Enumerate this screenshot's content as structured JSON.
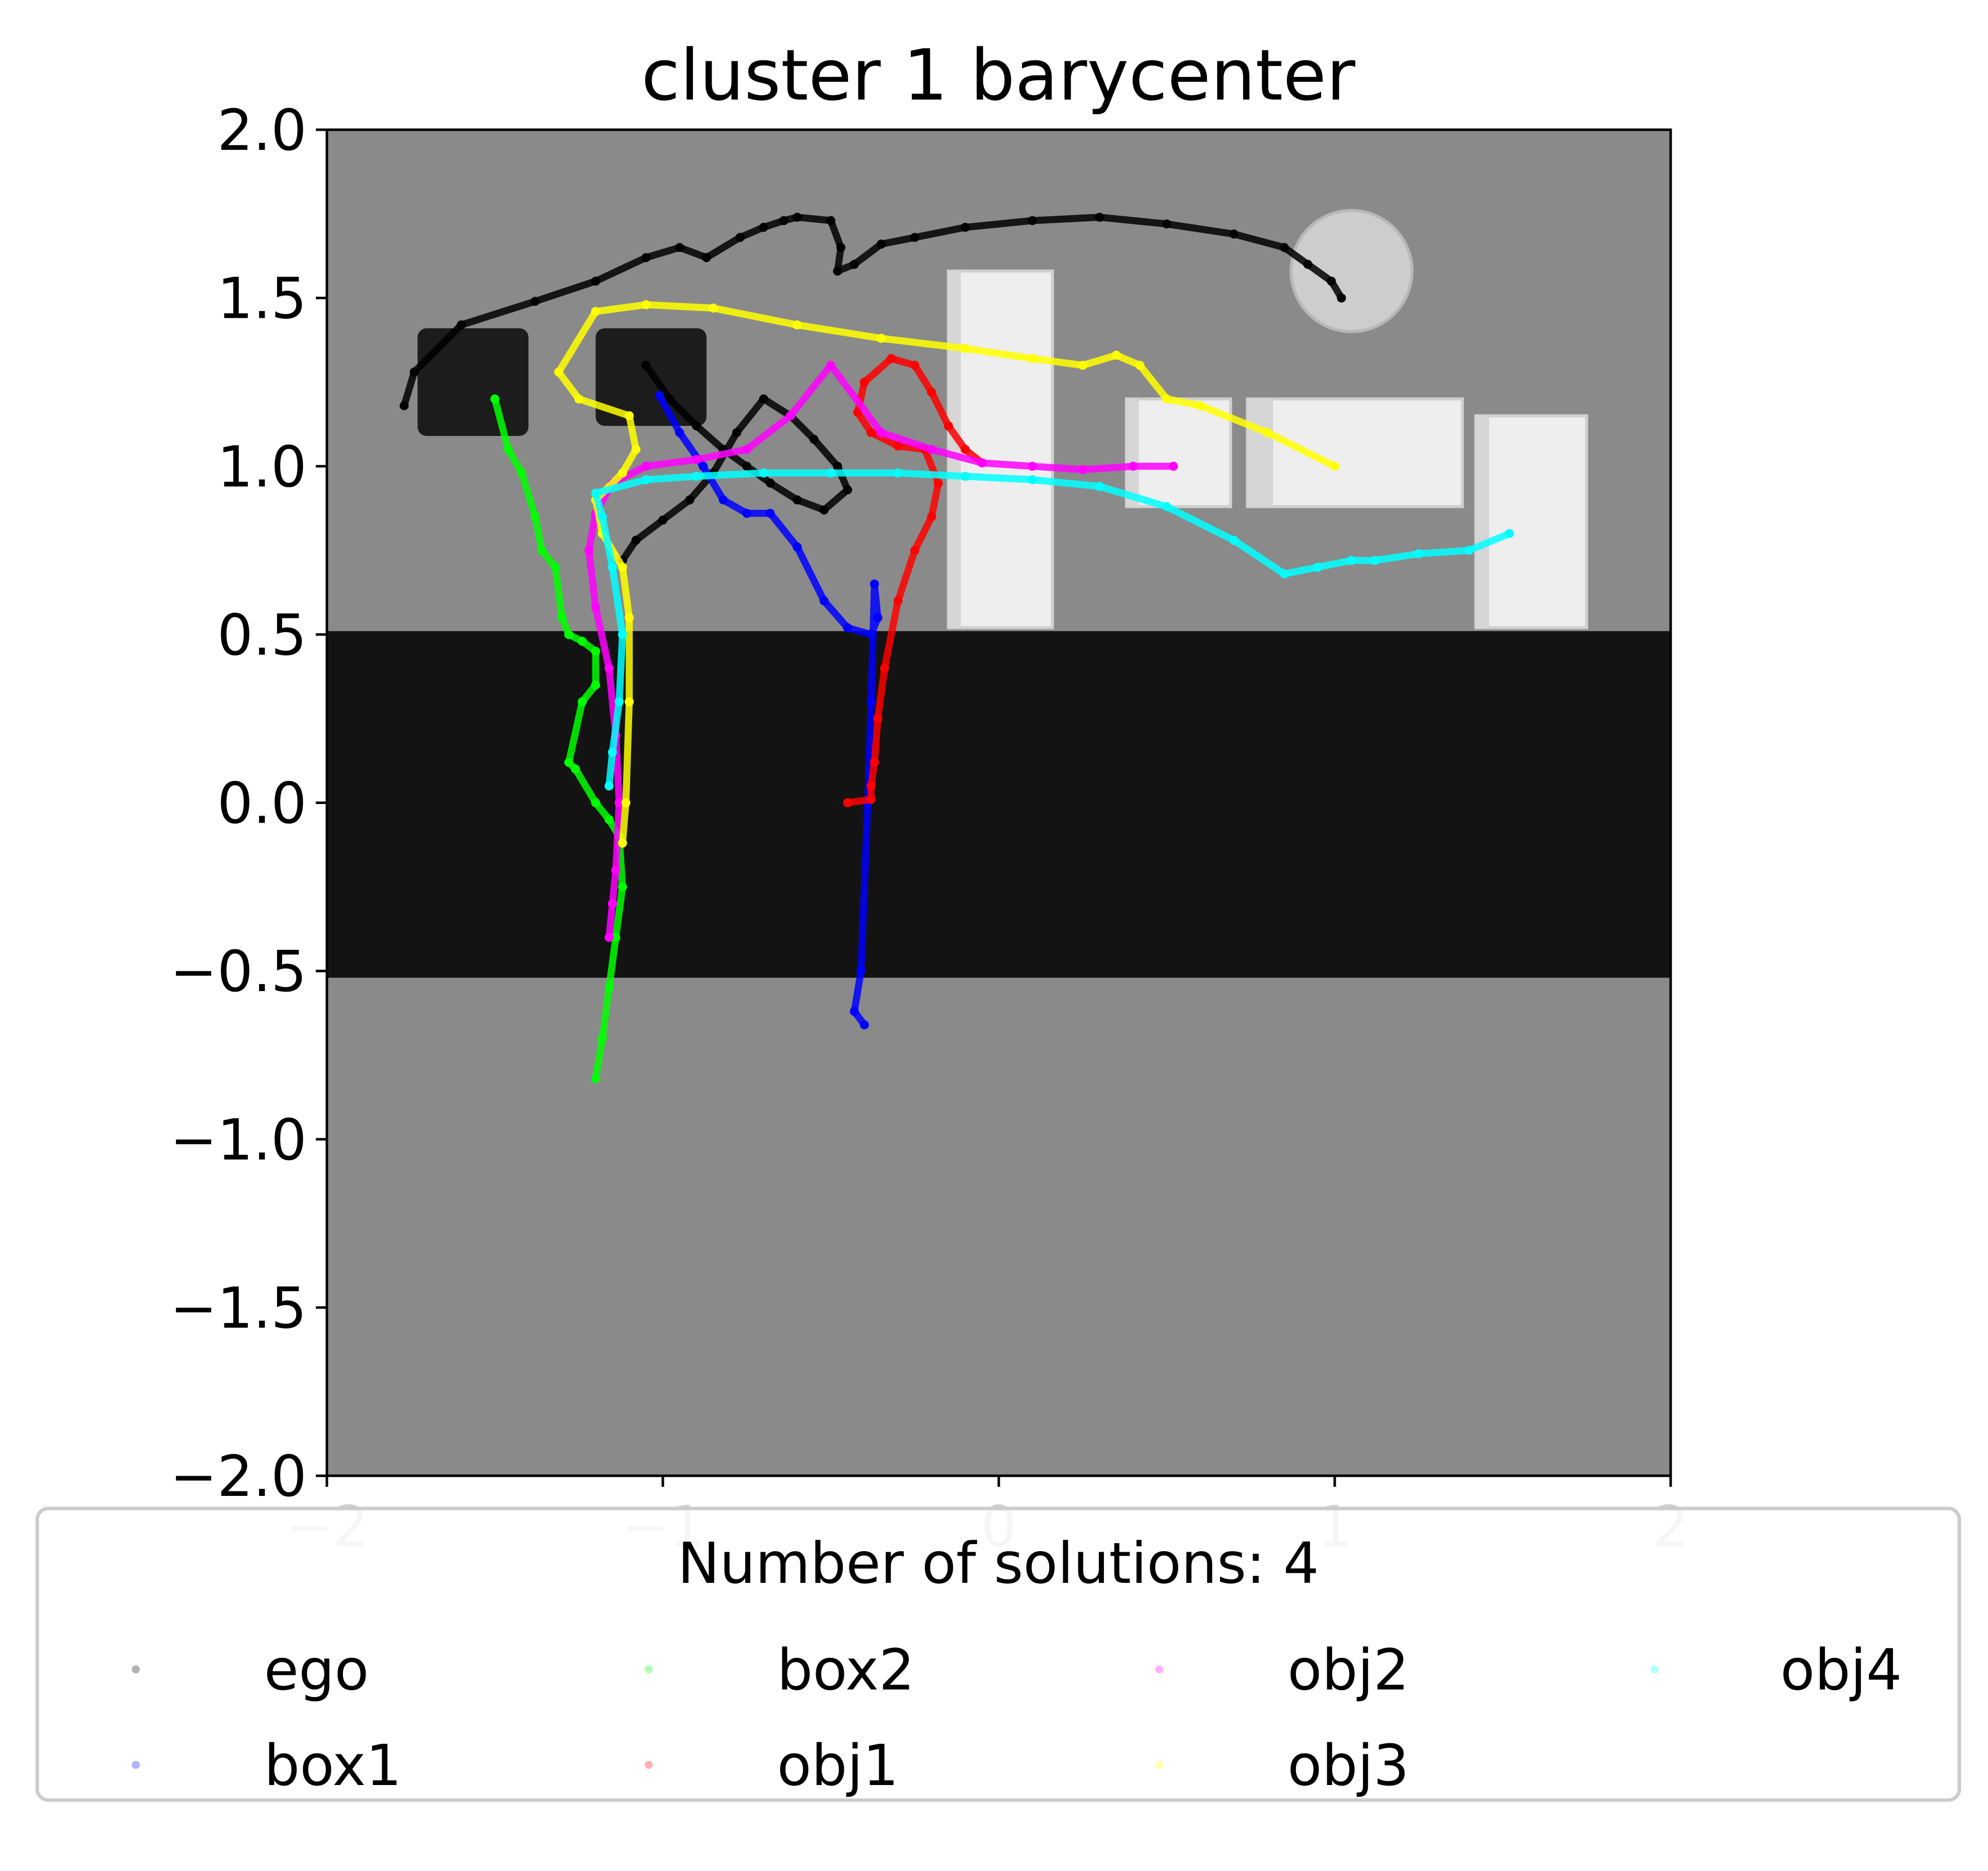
{
  "chart_data": {
    "type": "scatter",
    "title": "cluster 1 barycenter",
    "xlabel": "",
    "ylabel": "",
    "xlim": [
      -2,
      2
    ],
    "ylim": [
      -2,
      2
    ],
    "x_ticks": [
      -2,
      -1,
      0,
      1,
      2
    ],
    "x_tick_labels": [
      "−2",
      "−1",
      "0",
      "1",
      "2"
    ],
    "y_ticks": [
      2.0,
      1.5,
      1.0,
      0.5,
      0.0,
      -0.5,
      -1.0,
      -1.5,
      -2.0
    ],
    "y_tick_labels": [
      "2.0",
      "1.5",
      "1.0",
      "0.5",
      "0.0",
      "−0.5",
      "−1.0",
      "−1.5",
      "−2.0"
    ],
    "grid": false,
    "legend": {
      "title": "Number of solutions: 4",
      "placement": "below-plot",
      "columns": 4
    },
    "background": {
      "region_color": "#8a8a8a",
      "band_color": "#131313",
      "band_y": [
        -0.52,
        0.51
      ],
      "obstacles_dark": [
        {
          "x": [
            -1.73,
            -1.4
          ],
          "y": [
            1.09,
            1.41
          ]
        },
        {
          "x": [
            -1.2,
            -0.87
          ],
          "y": [
            1.12,
            1.41
          ]
        }
      ],
      "obstacles_light": [
        {
          "x": [
            -0.15,
            0.16
          ],
          "y": [
            0.52,
            1.58
          ]
        },
        {
          "x": [
            0.38,
            0.69
          ],
          "y": [
            0.88,
            1.2
          ]
        },
        {
          "x": [
            0.74,
            1.38
          ],
          "y": [
            0.88,
            1.2
          ]
        },
        {
          "x": [
            1.42,
            1.75
          ],
          "y": [
            0.52,
            1.15
          ]
        }
      ],
      "goal_circle": {
        "cx": 1.05,
        "cy": 1.58,
        "r": 0.18
      }
    },
    "series": [
      {
        "name": "ego",
        "color": "#000000",
        "x": [
          -1.77,
          -1.74,
          -1.6,
          -1.38,
          -1.2,
          -1.05,
          -0.95,
          -0.87,
          -0.77,
          -0.7,
          -0.64,
          -0.6,
          -0.5,
          -0.47,
          -0.48,
          -0.43,
          -0.35,
          -0.25,
          -0.1,
          0.1,
          0.3,
          0.5,
          0.7,
          0.85,
          0.92,
          0.99,
          1.02
        ],
        "y": [
          1.18,
          1.28,
          1.42,
          1.49,
          1.55,
          1.62,
          1.65,
          1.62,
          1.68,
          1.71,
          1.73,
          1.74,
          1.73,
          1.65,
          1.58,
          1.6,
          1.66,
          1.68,
          1.71,
          1.73,
          1.74,
          1.72,
          1.69,
          1.65,
          1.6,
          1.55,
          1.5
        ]
      },
      {
        "name": "ego",
        "color": "#000000",
        "x": [
          -1.05,
          -0.98,
          -0.9,
          -0.82,
          -0.75,
          -0.68,
          -0.6,
          -0.52,
          -0.45,
          -0.48,
          -0.55,
          -0.62,
          -0.7,
          -0.78,
          -0.85,
          -0.92,
          -1.0,
          -1.08,
          -1.12
        ],
        "y": [
          1.3,
          1.2,
          1.12,
          1.05,
          1.0,
          0.95,
          0.9,
          0.87,
          0.93,
          1.0,
          1.08,
          1.15,
          1.2,
          1.1,
          0.98,
          0.9,
          0.84,
          0.78,
          0.72
        ]
      },
      {
        "name": "box1",
        "color": "#0000ff",
        "x": [
          -1.01,
          -0.95,
          -0.88,
          -0.82,
          -0.75,
          -0.68,
          -0.6,
          -0.52,
          -0.45,
          -0.38,
          -0.36,
          -0.37,
          -0.38,
          -0.39,
          -0.41,
          -0.43,
          -0.4
        ],
        "y": [
          1.21,
          1.1,
          1.0,
          0.9,
          0.86,
          0.86,
          0.76,
          0.6,
          0.52,
          0.5,
          0.55,
          0.65,
          0.3,
          0.0,
          -0.5,
          -0.62,
          -0.66
        ]
      },
      {
        "name": "box2",
        "color": "#00ff00",
        "x": [
          -1.5,
          -1.46,
          -1.42,
          -1.38,
          -1.36,
          -1.32,
          -1.3,
          -1.28,
          -1.24,
          -1.2,
          -1.2,
          -1.24,
          -1.28,
          -1.26,
          -1.2,
          -1.16,
          -1.13,
          -1.12,
          -1.14,
          -1.16,
          -1.18,
          -1.2
        ],
        "y": [
          1.2,
          1.05,
          0.98,
          0.85,
          0.75,
          0.7,
          0.55,
          0.5,
          0.48,
          0.45,
          0.35,
          0.3,
          0.12,
          0.1,
          0.0,
          -0.05,
          -0.1,
          -0.25,
          -0.4,
          -0.55,
          -0.7,
          -0.82
        ]
      },
      {
        "name": "obj1",
        "color": "#ff0000",
        "x": [
          -0.05,
          -0.1,
          -0.15,
          -0.2,
          -0.25,
          -0.32,
          -0.4,
          -0.42,
          -0.38,
          -0.3,
          -0.22,
          -0.18,
          -0.2,
          -0.25,
          -0.3,
          -0.34,
          -0.36,
          -0.37,
          -0.38,
          -0.38,
          -0.45
        ],
        "y": [
          1.01,
          1.05,
          1.12,
          1.22,
          1.3,
          1.32,
          1.25,
          1.16,
          1.1,
          1.06,
          1.05,
          0.95,
          0.85,
          0.75,
          0.6,
          0.4,
          0.25,
          0.12,
          0.05,
          0.01,
          0.0
        ]
      },
      {
        "name": "obj2",
        "color": "#ff00ff",
        "x": [
          0.52,
          0.4,
          0.25,
          0.1,
          -0.05,
          -0.2,
          -0.35,
          -0.5,
          -0.62,
          -0.75,
          -0.9,
          -1.05,
          -1.15,
          -1.2,
          -1.22,
          -1.2,
          -1.16,
          -1.14,
          -1.13,
          -1.14,
          -1.15,
          -1.16
        ],
        "y": [
          1.0,
          1.0,
          0.99,
          1.0,
          1.01,
          1.05,
          1.1,
          1.3,
          1.15,
          1.05,
          1.02,
          1.0,
          0.95,
          0.86,
          0.75,
          0.58,
          0.4,
          0.2,
          0.0,
          -0.2,
          -0.3,
          -0.4
        ]
      },
      {
        "name": "obj3",
        "color": "#ffff00",
        "x": [
          1.0,
          0.8,
          0.6,
          0.5,
          0.42,
          0.35,
          0.25,
          0.1,
          -0.1,
          -0.35,
          -0.6,
          -0.85,
          -1.05,
          -1.2,
          -1.31,
          -1.25,
          -1.1,
          -1.08,
          -1.12,
          -1.2,
          -1.18,
          -1.12,
          -1.1,
          -1.1,
          -1.11,
          -1.12
        ],
        "y": [
          1.0,
          1.1,
          1.18,
          1.2,
          1.3,
          1.33,
          1.3,
          1.32,
          1.35,
          1.38,
          1.42,
          1.47,
          1.48,
          1.46,
          1.28,
          1.2,
          1.15,
          1.05,
          0.98,
          0.9,
          0.8,
          0.7,
          0.55,
          0.3,
          0.0,
          -0.12
        ]
      },
      {
        "name": "obj4",
        "color": "#00ffff",
        "x": [
          1.52,
          1.4,
          1.25,
          1.12,
          1.05,
          0.95,
          0.85,
          0.7,
          0.5,
          0.3,
          0.1,
          -0.1,
          -0.3,
          -0.5,
          -0.7,
          -0.9,
          -1.05,
          -1.2,
          -1.18,
          -1.15,
          -1.12,
          -1.13,
          -1.15,
          -1.16
        ],
        "y": [
          0.8,
          0.75,
          0.74,
          0.72,
          0.72,
          0.7,
          0.68,
          0.78,
          0.88,
          0.94,
          0.96,
          0.97,
          0.98,
          0.98,
          0.98,
          0.97,
          0.96,
          0.92,
          0.85,
          0.7,
          0.5,
          0.3,
          0.15,
          0.05
        ]
      }
    ],
    "legend_entries": [
      {
        "name": "ego",
        "color": "#000000"
      },
      {
        "name": "box1",
        "color": "#0000ff"
      },
      {
        "name": "box2",
        "color": "#00ff00"
      },
      {
        "name": "obj1",
        "color": "#ff0000"
      },
      {
        "name": "obj2",
        "color": "#ff00ff"
      },
      {
        "name": "obj3",
        "color": "#ffff00"
      },
      {
        "name": "obj4",
        "color": "#00ffff"
      }
    ]
  }
}
